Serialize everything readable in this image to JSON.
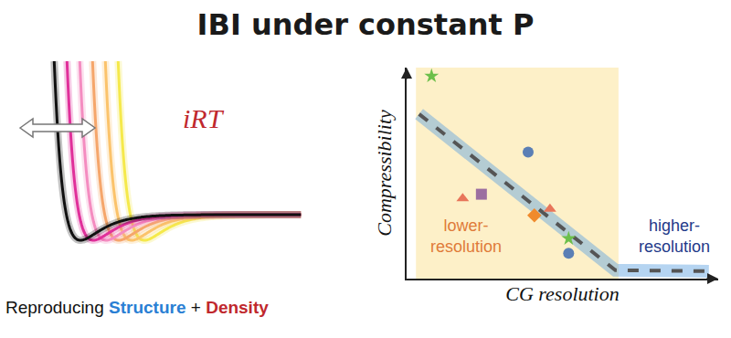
{
  "title": "IBI under constant P",
  "left_panel": {
    "label": "iRT",
    "caption": [
      {
        "text": "Reproducing "
      },
      {
        "text": "Structure",
        "color": "#2a7fd4"
      },
      {
        "text": " + "
      },
      {
        "text": "Density",
        "color": "#c0282d"
      }
    ]
  },
  "chart_data": {
    "type": "scatter",
    "xlabel": "CG resolution",
    "ylabel": "Compressibility",
    "xlim": [
      0,
      10
    ],
    "ylim": [
      0,
      10
    ],
    "tick_labels": false,
    "grid": false,
    "shaded_region": [
      0.3,
      6.8
    ],
    "annotations": [
      {
        "text": "lower-\nresolution",
        "x": 1.9,
        "y": 2.0,
        "color": "#e07b39"
      },
      {
        "text": "higher-\nresolution",
        "x": 8.6,
        "y": 2.0,
        "color": "#1f3a8a"
      }
    ],
    "series": [
      {
        "type": "line",
        "line_style": "dash",
        "color": "#555555",
        "x": [
          0.4,
          6.7,
          9.7
        ],
        "values": [
          7.8,
          0.4,
          0.35
        ]
      },
      {
        "type": "scatter",
        "marker": "star",
        "color": "#6cbf4a",
        "x": [
          0.8,
          5.2
        ],
        "values": [
          9.6,
          1.9
        ]
      },
      {
        "type": "scatter",
        "marker": "circle",
        "color": "#5b7fb5",
        "x": [
          3.9,
          5.2
        ],
        "values": [
          6.0,
          1.2
        ]
      },
      {
        "type": "scatter",
        "marker": "triangle",
        "color": "#e8755a",
        "x": [
          1.8,
          4.6
        ],
        "values": [
          3.8,
          3.3
        ]
      },
      {
        "type": "scatter",
        "marker": "square",
        "color": "#9c6fa0",
        "x": [
          2.4
        ],
        "values": [
          4.0
        ]
      },
      {
        "type": "scatter",
        "marker": "diamond",
        "color": "#f08a2c",
        "x": [
          4.1
        ],
        "values": [
          3.0
        ]
      }
    ]
  }
}
